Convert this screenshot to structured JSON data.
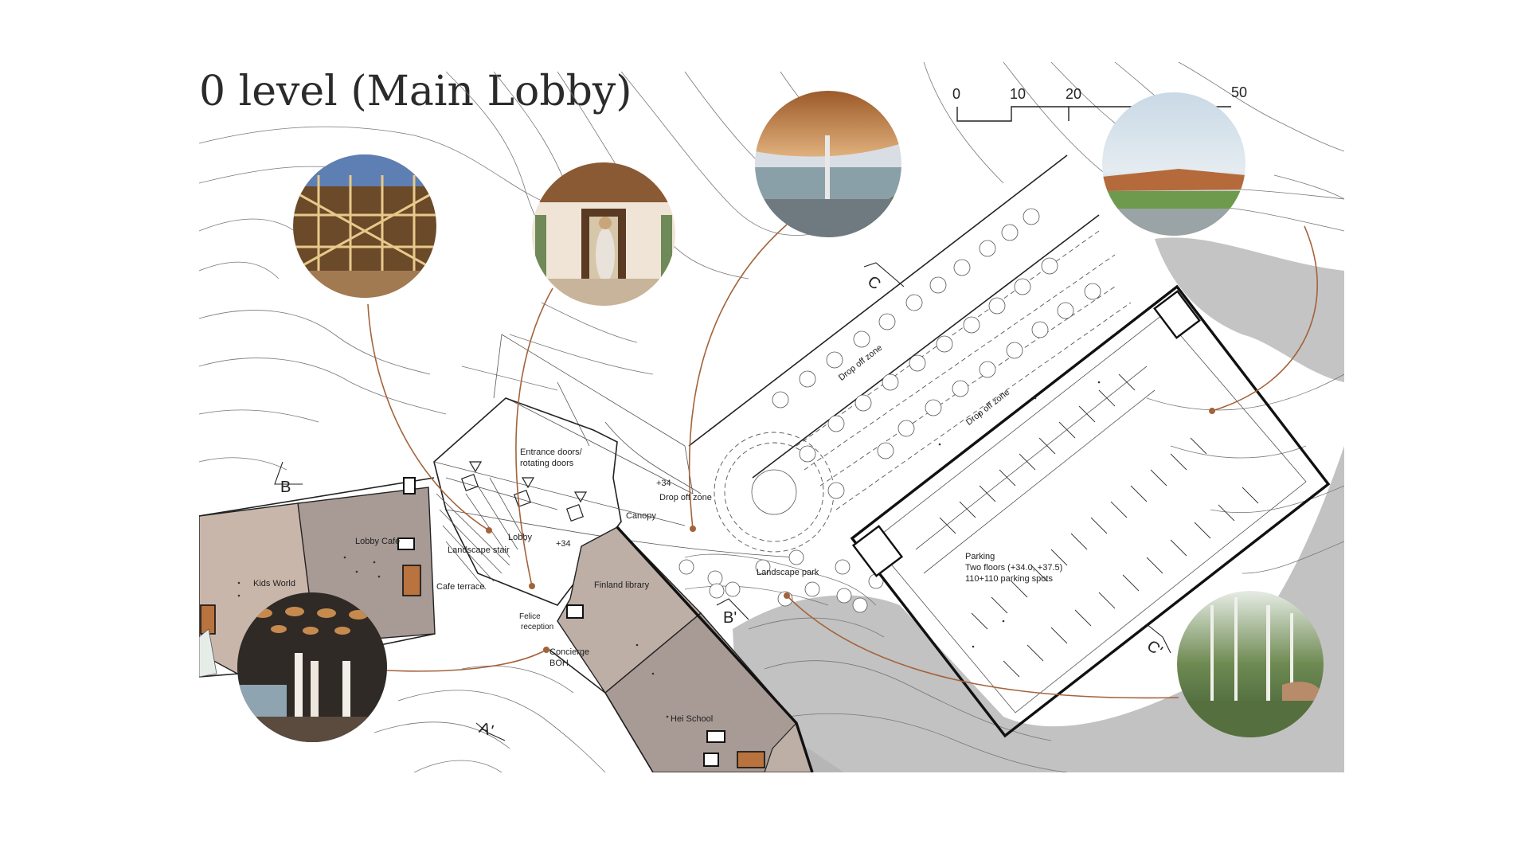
{
  "title": "0 level (Main Lobby)",
  "scale_bar": {
    "ticks": [
      "0",
      "10",
      "20",
      "50"
    ]
  },
  "section_marks": {
    "b": "B",
    "c": "C",
    "b_prime": "B'",
    "c_prime": "C'",
    "a_prime": "A'"
  },
  "levels": {
    "lobby_level": "+34",
    "canopy_level": "+34"
  },
  "labels": {
    "entrance_doors_1": "Entrance doors/",
    "entrance_doors_2": "rotating doors",
    "drop_off_1": "Drop off zone",
    "drop_off_2": "Drop off zone",
    "drop_off_3": "Drop off zone",
    "canopy": "Canopy",
    "lobby": "Lobby",
    "lobby_cafe": "Lobby Cafe",
    "landscape_stair": "Landscape stair",
    "kids_world": "Kids World",
    "cafe_terrace": "Cafe terrace",
    "finland_library": "Finland library",
    "felice_1": "Felice",
    "felice_2": "reception",
    "concierge": "Concierge",
    "boh": "BOH",
    "hei_school": "Hei School",
    "landscape_park": "Landscape park",
    "parking_1": "Parking",
    "parking_2": "Two floors (+34.0, +37.5)",
    "parking_3": "110+110 parking spots"
  },
  "colors": {
    "leader": "#a3633a",
    "room_dark": "#a89a94",
    "room_light": "#c9b6ab",
    "room_pale": "#bdaea6",
    "terrain_grey": "#c2c2c2",
    "contour": "#777777"
  }
}
